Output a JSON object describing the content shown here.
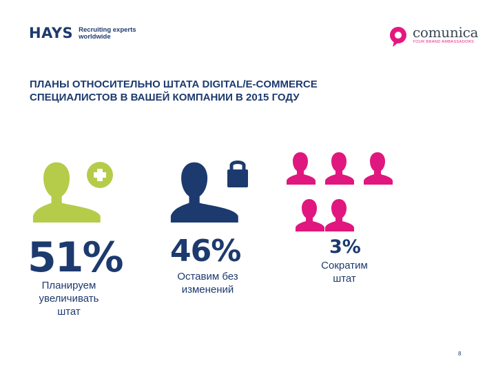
{
  "header": {
    "hays_logo": "HAYS",
    "hays_tagline": [
      "Recruiting experts",
      "worldwide"
    ],
    "comunica_logo": "comunica",
    "comunica_tagline": "YOUR BRAND AMBASSADORS"
  },
  "title": {
    "line1": "ПЛАНЫ ОТНОСИТЕЛЬНО ШТАТА DIGITAL/E-COMMERCE",
    "line2": "СПЕЦИАЛИСТОВ В ВАШЕЙ КОМПАНИИ В 2015 ГОДУ"
  },
  "stats": [
    {
      "percent": "51%",
      "caption": [
        "Планируем",
        "увеличивать",
        "штат"
      ],
      "icon": "person-plus-icon",
      "color": "#b5cc4a"
    },
    {
      "percent": "46%",
      "caption": [
        "Оставим без",
        "изменений"
      ],
      "icon": "person-lock-icon",
      "color": "#1d3a6e"
    },
    {
      "percent": "3%",
      "caption": [
        "Сократим",
        "штат"
      ],
      "icon": "people-group-icon",
      "color": "#e0177e"
    }
  ],
  "colors": {
    "navy": "#1d3a6e",
    "green": "#b5cc4a",
    "magenta": "#e0177e"
  },
  "page_number": "8"
}
